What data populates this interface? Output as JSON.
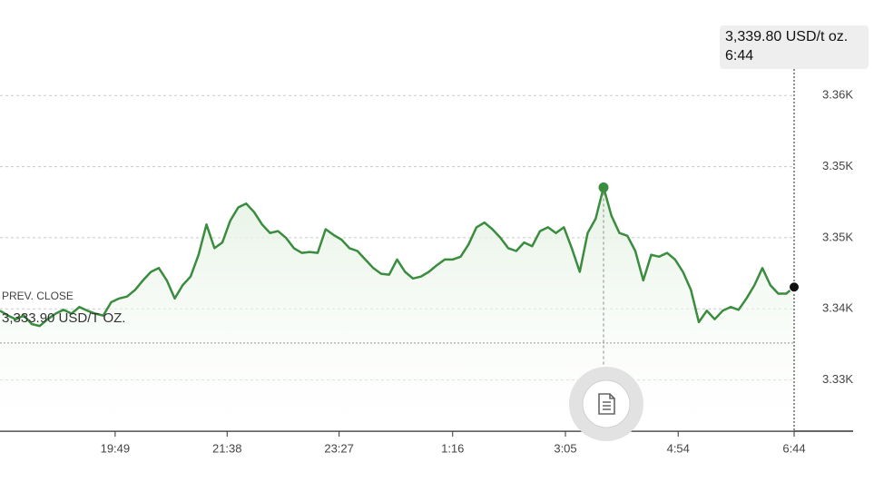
{
  "chart_data": {
    "type": "line",
    "values": [
      3337.3,
      3336.8,
      3336.4,
      3336.8,
      3335.9,
      3335.7,
      3336.4,
      3337.0,
      3337.4,
      3337.0,
      3337.7,
      3337.3,
      3337.0,
      3336.8,
      3338.2,
      3338.6,
      3338.8,
      3339.5,
      3340.5,
      3341.4,
      3341.8,
      3340.5,
      3338.6,
      3340.0,
      3340.9,
      3343.2,
      3346.4,
      3343.9,
      3344.5,
      3346.8,
      3348.2,
      3348.6,
      3347.7,
      3346.4,
      3345.5,
      3345.7,
      3345.0,
      3343.9,
      3343.4,
      3343.5,
      3343.4,
      3345.9,
      3345.3,
      3344.8,
      3343.9,
      3343.6,
      3342.7,
      3341.8,
      3341.2,
      3341.1,
      3342.7,
      3341.4,
      3340.7,
      3340.9,
      3341.4,
      3342.1,
      3342.7,
      3342.7,
      3343.0,
      3344.3,
      3346.1,
      3346.6,
      3345.9,
      3345.0,
      3343.9,
      3343.6,
      3344.5,
      3344.1,
      3345.7,
      3346.1,
      3345.5,
      3346.1,
      3343.9,
      3341.4,
      3345.5,
      3347.0,
      3350.3,
      3347.3,
      3345.5,
      3345.2,
      3343.6,
      3340.5,
      3343.2,
      3343.0,
      3343.4,
      3342.7,
      3341.4,
      3339.5,
      3336.1,
      3337.3,
      3336.4,
      3337.3,
      3337.7,
      3337.4,
      3338.6,
      3340.0,
      3341.8,
      3340.0,
      3339.1,
      3339.1,
      3339.8
    ],
    "color": "#3a8c3f",
    "xlim": [
      0,
      100
    ],
    "xticks": [
      {
        "value": 14.5,
        "label": "19:49"
      },
      {
        "value": 28.6,
        "label": "21:38"
      },
      {
        "value": 42.7,
        "label": "23:27"
      },
      {
        "value": 57,
        "label": "1:16"
      },
      {
        "value": 71.2,
        "label": "3:05"
      },
      {
        "value": 85.4,
        "label": "4:54"
      },
      {
        "value": 100,
        "label": "6:44"
      }
    ],
    "ylim": [
      3324.6,
      3365
    ],
    "yticks": [
      {
        "value": 3330,
        "label": "3.33K"
      },
      {
        "value": 3337.5,
        "label": "3.34K"
      },
      {
        "value": 3345,
        "label": "3.35K"
      },
      {
        "value": 3352.5,
        "label": "3.35K"
      },
      {
        "value": 3360,
        "label": "3.36K"
      }
    ],
    "grid": true,
    "prev_close": {
      "title": "PREV. CLOSE",
      "value": 3333.9,
      "label": "3,333.90 USD/T OZ."
    },
    "tooltip": {
      "price": "3,339.80 USD/t oz.",
      "time": "6:44"
    }
  }
}
